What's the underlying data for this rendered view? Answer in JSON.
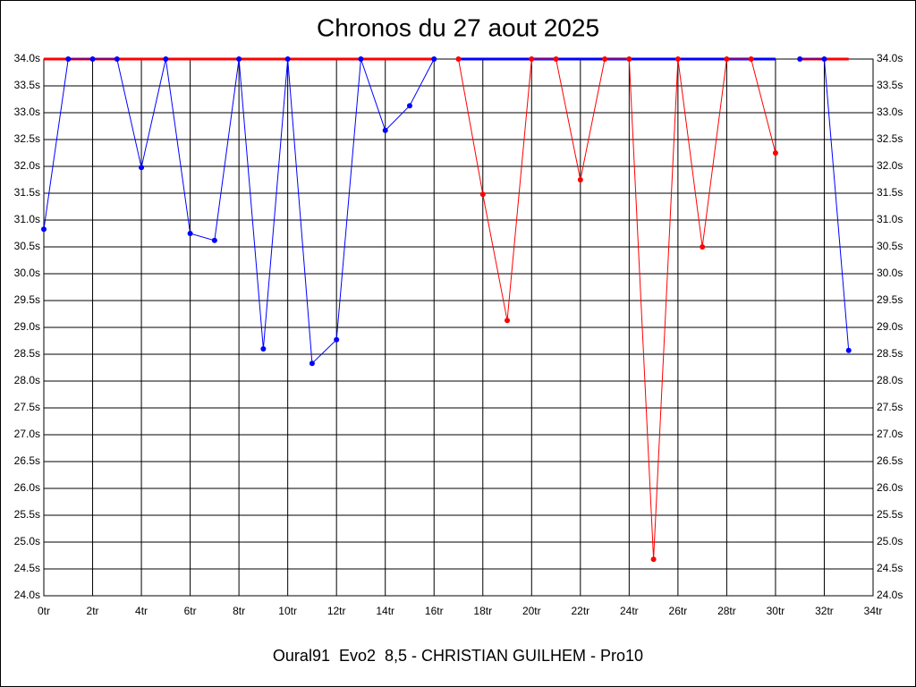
{
  "chart_data": {
    "type": "line",
    "title": "Chronos du 27 aout 2025",
    "footer": "Oural91  Evo2  8,5 - CHRISTIAN GUILHEM - Pro10",
    "x": [
      0,
      1,
      2,
      3,
      4,
      5,
      6,
      7,
      8,
      9,
      10,
      11,
      12,
      13,
      14,
      15,
      16,
      17,
      18,
      19,
      20,
      21,
      22,
      23,
      24,
      25,
      26,
      27,
      28,
      29,
      30,
      31,
      32,
      33
    ],
    "series": [
      {
        "color": "#0000ff",
        "values": [
          30.83,
          34.0,
          34.0,
          34.0,
          31.98,
          34.0,
          30.75,
          30.62,
          34.0,
          28.6,
          34.0,
          28.33,
          28.77,
          34.0,
          32.67,
          33.13,
          34.0,
          null,
          null,
          null,
          null,
          null,
          null,
          null,
          null,
          null,
          null,
          null,
          null,
          null,
          null,
          34.0,
          34.0,
          28.57
        ]
      },
      {
        "color": "#ff0000",
        "values": [
          null,
          null,
          null,
          null,
          null,
          null,
          null,
          null,
          null,
          null,
          null,
          null,
          null,
          null,
          null,
          null,
          null,
          34.0,
          31.48,
          29.13,
          34.0,
          34.0,
          31.75,
          34.0,
          34.0,
          24.68,
          34.0,
          30.5,
          34.0,
          34.0,
          32.25,
          null,
          null,
          null
        ]
      }
    ],
    "xlim": [
      0,
      34
    ],
    "xticks": [
      {
        "value": 0,
        "label": "0tr"
      },
      {
        "value": 2,
        "label": "2tr"
      },
      {
        "value": 4,
        "label": "4tr"
      },
      {
        "value": 6,
        "label": "6tr"
      },
      {
        "value": 8,
        "label": "8tr"
      },
      {
        "value": 10,
        "label": "10tr"
      },
      {
        "value": 12,
        "label": "12tr"
      },
      {
        "value": 14,
        "label": "14tr"
      },
      {
        "value": 16,
        "label": "16tr"
      },
      {
        "value": 18,
        "label": "18tr"
      },
      {
        "value": 20,
        "label": "20tr"
      },
      {
        "value": 22,
        "label": "22tr"
      },
      {
        "value": 24,
        "label": "24tr"
      },
      {
        "value": 26,
        "label": "26tr"
      },
      {
        "value": 28,
        "label": "28tr"
      },
      {
        "value": 30,
        "label": "30tr"
      },
      {
        "value": 32,
        "label": "32tr"
      },
      {
        "value": 34,
        "label": "34tr"
      }
    ],
    "ylim": [
      24.0,
      34.0
    ],
    "yticks": [
      {
        "value": 24.0,
        "label": "24.0s"
      },
      {
        "value": 24.5,
        "label": "24.5s"
      },
      {
        "value": 25.0,
        "label": "25.0s"
      },
      {
        "value": 25.5,
        "label": "25.5s"
      },
      {
        "value": 26.0,
        "label": "26.0s"
      },
      {
        "value": 26.5,
        "label": "26.5s"
      },
      {
        "value": 27.0,
        "label": "27.0s"
      },
      {
        "value": 27.5,
        "label": "27.5s"
      },
      {
        "value": 28.0,
        "label": "28.0s"
      },
      {
        "value": 28.5,
        "label": "28.5s"
      },
      {
        "value": 29.0,
        "label": "29.0s"
      },
      {
        "value": 29.5,
        "label": "29.5s"
      },
      {
        "value": 30.0,
        "label": "30.0s"
      },
      {
        "value": 30.5,
        "label": "30.5s"
      },
      {
        "value": 31.0,
        "label": "31.0s"
      },
      {
        "value": 31.5,
        "label": "31.5s"
      },
      {
        "value": 32.0,
        "label": "32.0s"
      },
      {
        "value": 32.5,
        "label": "32.5s"
      },
      {
        "value": 33.0,
        "label": "33.0s"
      },
      {
        "value": 33.5,
        "label": "33.5s"
      },
      {
        "value": 34.0,
        "label": "34.0s"
      }
    ],
    "grid": true
  }
}
